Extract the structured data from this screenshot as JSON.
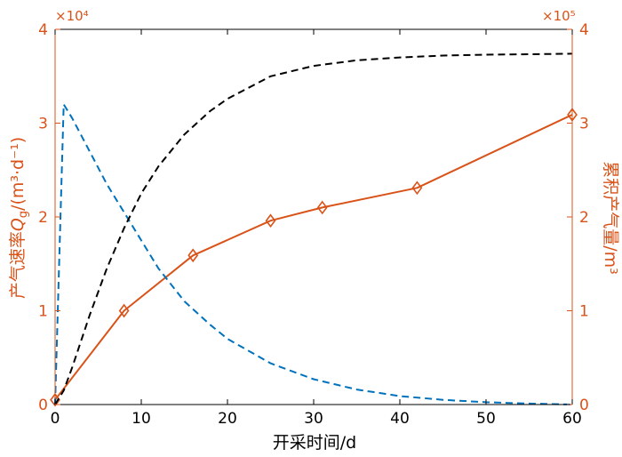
{
  "chart_data": {
    "type": "line",
    "xlabel": "开采时间/d",
    "ylabel_left_main": "产气速率",
    "ylabel_left_symbol": "Q",
    "ylabel_left_sub": "g",
    "ylabel_left_unit": "/(m³·d⁻¹)",
    "ylabel_right": "累积产气量/m³",
    "scale_left": "×10⁴",
    "scale_right": "×10⁵",
    "xlim": [
      0,
      60
    ],
    "ylim_left": [
      0,
      40000
    ],
    "ylim_right": [
      0,
      400000
    ],
    "x_ticks": [
      0,
      10,
      20,
      30,
      40,
      50,
      60
    ],
    "y_ticks": [
      0,
      1,
      2,
      3,
      4
    ],
    "colors": {
      "axis": "#D95319",
      "blue": "#0072BD",
      "black": "#000000",
      "xaxis": "#000000"
    },
    "series": [
      {
        "axis": "right",
        "style": "solid-diamond",
        "color": "#D95319",
        "x": [
          0,
          8,
          16,
          25,
          31,
          42,
          60
        ],
        "y": [
          5000,
          100000,
          159000,
          196000,
          210000,
          231000,
          309000
        ]
      },
      {
        "axis": "left",
        "style": "dashed",
        "color": "#0072BD",
        "x": [
          0,
          1,
          2,
          4,
          6,
          8,
          10,
          12,
          15,
          18,
          20,
          25,
          30,
          35,
          40,
          45,
          50,
          55,
          60
        ],
        "y": [
          0,
          32000,
          30500,
          27000,
          23500,
          20500,
          17500,
          14500,
          11000,
          8500,
          7000,
          4400,
          2700,
          1600,
          900,
          500,
          250,
          100,
          0
        ]
      },
      {
        "axis": "left",
        "style": "dashed",
        "color": "#000000",
        "x": [
          0,
          1,
          2,
          4,
          6,
          8,
          10,
          12,
          15,
          18,
          20,
          25,
          30,
          35,
          40,
          45,
          50,
          55,
          60
        ],
        "y": [
          0,
          1500,
          4000,
          9500,
          14500,
          18800,
          22500,
          25400,
          28800,
          31300,
          32600,
          35000,
          36100,
          36700,
          37000,
          37200,
          37300,
          37350,
          37400
        ]
      }
    ]
  }
}
